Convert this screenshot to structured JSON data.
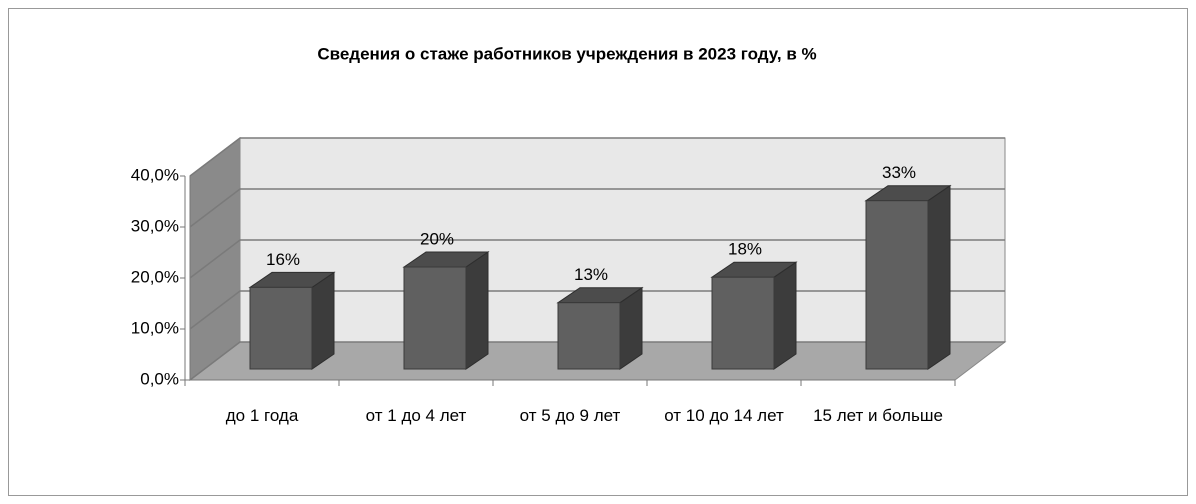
{
  "chart_data": {
    "type": "bar3d",
    "title": "Сведения о стаже работников учреждения в 2023 году, в %",
    "categories": [
      "до 1 года",
      "от 1 до 4 лет",
      "от 5 до 9 лет",
      "от 10 до 14 лет",
      "15 лет и больше"
    ],
    "values": [
      16,
      20,
      13,
      18,
      33
    ],
    "value_labels": [
      "16%",
      "20%",
      "13%",
      "18%",
      "33%"
    ],
    "color": "#606060",
    "ylim": [
      0,
      40
    ],
    "yticks": [
      {
        "value": 0,
        "label": "0,0%"
      },
      {
        "value": 10,
        "label": "10,0%"
      },
      {
        "value": 20,
        "label": "20,0%"
      },
      {
        "value": 30,
        "label": "30,0%"
      },
      {
        "value": 40,
        "label": "40,0%"
      }
    ],
    "grid": true
  }
}
